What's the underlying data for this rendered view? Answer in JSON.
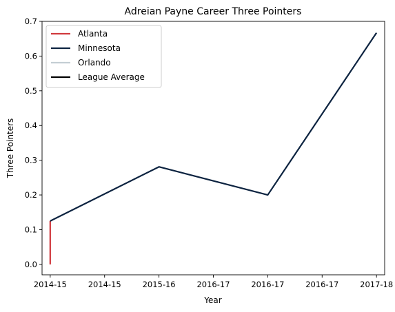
{
  "chart_data": {
    "type": "line",
    "title": "Adreian Payne Career Three Pointers",
    "xlabel": "Year",
    "ylabel": "Three Pointers",
    "x_ticks": [
      "2014-15",
      "2014-15",
      "2015-16",
      "2016-17",
      "2016-17",
      "2016-17",
      "2017-18"
    ],
    "y_ticks": [
      "0.0",
      "0.1",
      "0.2",
      "0.3",
      "0.4",
      "0.5",
      "0.6",
      "0.7"
    ],
    "ylim": [
      -0.03,
      0.7
    ],
    "xlim": [
      -0.15,
      6.15
    ],
    "grid": false,
    "legend_position": "top-left",
    "series": [
      {
        "name": "Atlanta",
        "color": "#d0393d",
        "x": [
          0,
          0
        ],
        "y": [
          0.0,
          0.125
        ]
      },
      {
        "name": "Minnesota",
        "color": "#0c2340",
        "x": [
          0,
          2,
          4,
          6
        ],
        "y": [
          0.125,
          0.281,
          0.2,
          0.667
        ]
      },
      {
        "name": "Orlando",
        "color": "#c4ced4",
        "x": [],
        "y": []
      },
      {
        "name": "League Average",
        "color": "#000000",
        "x": [],
        "y": []
      }
    ]
  }
}
